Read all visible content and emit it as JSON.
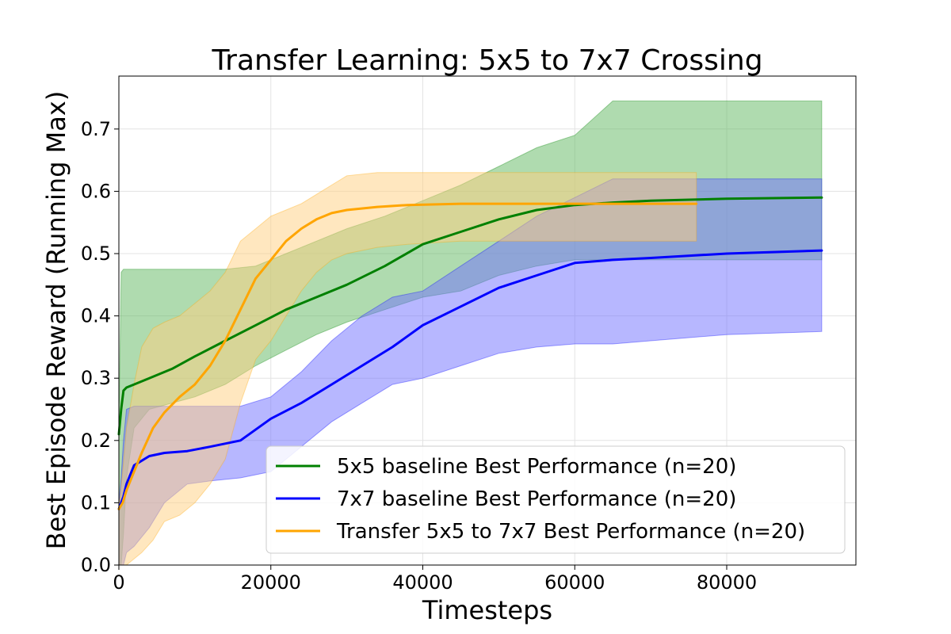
{
  "chart_data": {
    "type": "line",
    "title": "Transfer Learning: 5x5 to 7x7 Crossing",
    "xlabel": "Timesteps",
    "ylabel": "Best Episode Reward (Running Max)",
    "xlim": [
      0,
      97000
    ],
    "ylim": [
      0,
      0.785
    ],
    "xticks": [
      0,
      20000,
      40000,
      60000,
      80000
    ],
    "xtick_labels": [
      "0",
      "20000",
      "40000",
      "60000",
      "80000"
    ],
    "yticks": [
      0.0,
      0.1,
      0.2,
      0.3,
      0.4,
      0.5,
      0.6,
      0.7
    ],
    "ytick_labels": [
      "0.0",
      "0.1",
      "0.2",
      "0.3",
      "0.4",
      "0.5",
      "0.6",
      "0.7"
    ],
    "grid": true,
    "legend_position": "bottom-right",
    "series": [
      {
        "name": "5x5 baseline Best Performance (n=20)",
        "color": "#008000",
        "band_color": "#5fb75f",
        "x": [
          0,
          300,
          600,
          1000,
          2000,
          4000,
          7000,
          10000,
          14000,
          18000,
          22000,
          26000,
          30000,
          35000,
          40000,
          45000,
          50000,
          55000,
          60000,
          65000,
          70000,
          80000,
          92500
        ],
        "y": [
          0.21,
          0.25,
          0.28,
          0.285,
          0.29,
          0.3,
          0.315,
          0.335,
          0.36,
          0.385,
          0.41,
          0.43,
          0.45,
          0.48,
          0.515,
          0.535,
          0.555,
          0.57,
          0.578,
          0.582,
          0.585,
          0.588,
          0.59
        ],
        "upper": [
          0.22,
          0.47,
          0.475,
          0.475,
          0.475,
          0.475,
          0.475,
          0.475,
          0.475,
          0.48,
          0.5,
          0.52,
          0.54,
          0.56,
          0.585,
          0.61,
          0.64,
          0.67,
          0.69,
          0.745,
          0.745,
          0.745,
          0.745
        ],
        "lower": [
          0.0,
          0.0,
          0.05,
          0.14,
          0.22,
          0.25,
          0.26,
          0.27,
          0.29,
          0.32,
          0.345,
          0.37,
          0.39,
          0.41,
          0.43,
          0.44,
          0.465,
          0.48,
          0.49,
          0.49,
          0.49,
          0.49,
          0.49
        ]
      },
      {
        "name": "7x7 baseline Best Performance (n=20)",
        "color": "#0000ff",
        "band_color": "#6f6fff",
        "x": [
          0,
          300,
          600,
          1000,
          2000,
          4000,
          6000,
          9000,
          12000,
          16000,
          20000,
          24000,
          28000,
          32000,
          36000,
          40000,
          45000,
          50000,
          55000,
          60000,
          65000,
          70000,
          80000,
          92500
        ],
        "y": [
          0.09,
          0.1,
          0.11,
          0.13,
          0.16,
          0.175,
          0.18,
          0.183,
          0.19,
          0.2,
          0.235,
          0.26,
          0.29,
          0.32,
          0.35,
          0.385,
          0.415,
          0.445,
          0.465,
          0.485,
          0.49,
          0.493,
          0.5,
          0.505
        ],
        "upper": [
          0.1,
          0.14,
          0.2,
          0.25,
          0.255,
          0.255,
          0.255,
          0.255,
          0.255,
          0.255,
          0.27,
          0.31,
          0.36,
          0.4,
          0.43,
          0.44,
          0.48,
          0.52,
          0.56,
          0.59,
          0.62,
          0.62,
          0.62,
          0.62
        ],
        "lower": [
          0.0,
          0.0,
          0.0,
          0.02,
          0.03,
          0.06,
          0.1,
          0.13,
          0.135,
          0.14,
          0.15,
          0.19,
          0.23,
          0.26,
          0.29,
          0.3,
          0.32,
          0.34,
          0.35,
          0.355,
          0.355,
          0.36,
          0.37,
          0.375
        ]
      },
      {
        "name": "Transfer 5x5 to 7x7 Best Performance (n=20)",
        "color": "#ffa500",
        "band_color": "#ffd080",
        "x": [
          0,
          500,
          1000,
          2000,
          3000,
          4500,
          6000,
          8000,
          10000,
          12000,
          14000,
          16000,
          18000,
          20000,
          22000,
          24000,
          26000,
          28000,
          30000,
          34000,
          38000,
          45000,
          55000,
          65000,
          76000
        ],
        "y": [
          0.09,
          0.1,
          0.12,
          0.15,
          0.18,
          0.22,
          0.245,
          0.27,
          0.29,
          0.32,
          0.36,
          0.41,
          0.46,
          0.49,
          0.52,
          0.54,
          0.555,
          0.565,
          0.57,
          0.575,
          0.578,
          0.58,
          0.58,
          0.58,
          0.58
        ],
        "upper": [
          0.09,
          0.15,
          0.22,
          0.29,
          0.35,
          0.38,
          0.39,
          0.4,
          0.42,
          0.44,
          0.47,
          0.52,
          0.54,
          0.56,
          0.57,
          0.58,
          0.595,
          0.61,
          0.625,
          0.63,
          0.63,
          0.63,
          0.63,
          0.63,
          0.63
        ],
        "lower": [
          0.0,
          0.0,
          0.0,
          0.01,
          0.02,
          0.04,
          0.07,
          0.08,
          0.1,
          0.13,
          0.17,
          0.26,
          0.33,
          0.36,
          0.4,
          0.44,
          0.47,
          0.49,
          0.5,
          0.51,
          0.515,
          0.52,
          0.52,
          0.52,
          0.52
        ]
      }
    ]
  }
}
